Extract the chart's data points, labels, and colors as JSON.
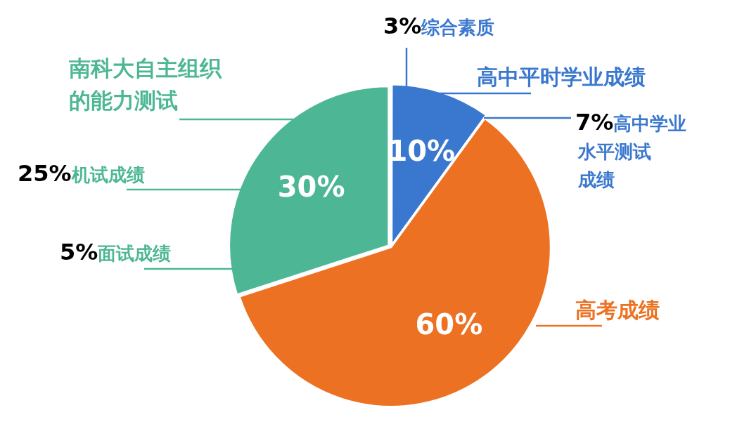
{
  "chart_data": {
    "type": "pie",
    "categories": [
      "高中平时学业成绩",
      "高考成绩",
      "南科大自主组织的能力测试"
    ],
    "values": [
      10,
      60,
      30
    ],
    "colors": [
      "#3a78cf",
      "#ec7122",
      "#4db795"
    ],
    "value_labels": [
      "10%",
      "60%",
      "30%"
    ],
    "legend": false,
    "annotations": [
      "3%综合素质",
      "7%高中学业水平测试成绩",
      "25%机试成绩",
      "5%面试成绩"
    ]
  }
}
